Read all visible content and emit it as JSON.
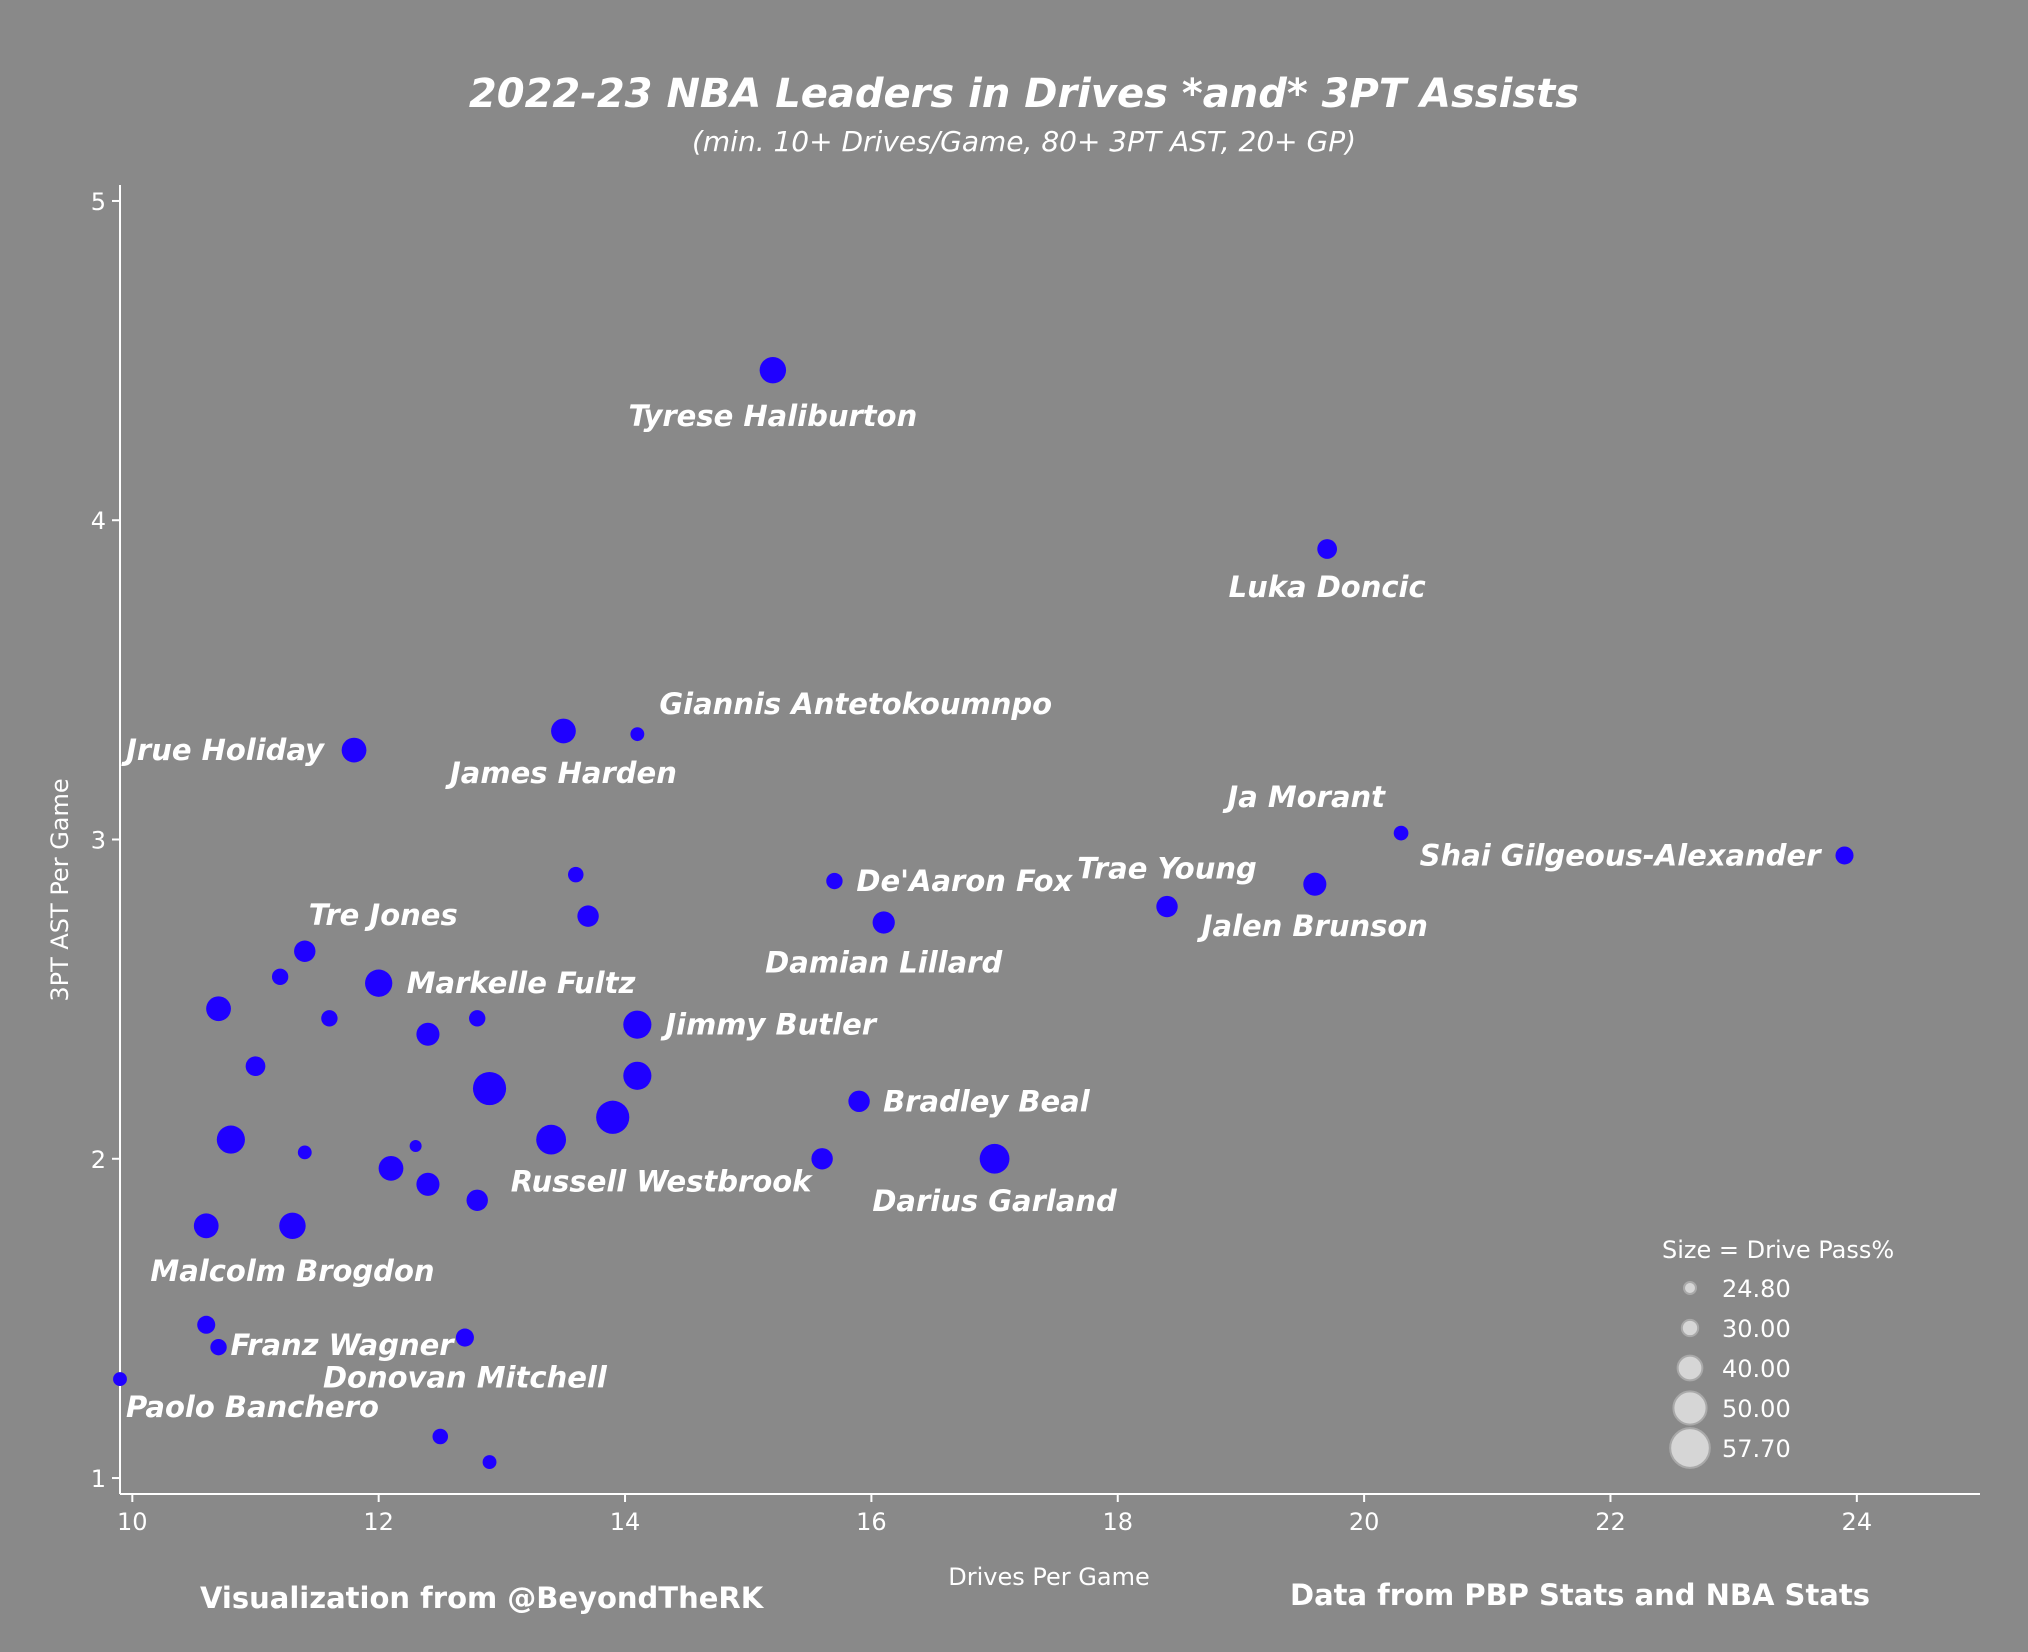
{
  "chart_data": {
    "type": "scatter",
    "title": "2022-23 NBA Leaders in Drives *and* 3PT Assists",
    "subtitle": "(min. 10+ Drives/Game, 80+ 3PT AST, 20+ GP)",
    "xlabel": "Drives Per Game",
    "ylabel": "3PT AST Per Game",
    "xlim": [
      9.9,
      25.0
    ],
    "ylim": [
      0.95,
      5.05
    ],
    "x_ticks": [
      "10",
      "12",
      "14",
      "16",
      "18",
      "20",
      "22",
      "24"
    ],
    "y_ticks": [
      "1",
      "2",
      "3",
      "4",
      "5"
    ],
    "colors": {
      "background": "#898989",
      "point": "#1f00ff",
      "legend_circle": "#d6d6d6"
    },
    "size_legend": {
      "title": "Size = Drive Pass%",
      "entries": [
        "24.80",
        "30.00",
        "40.00",
        "50.00",
        "57.70"
      ]
    },
    "labeled_points": [
      {
        "label": "Tyrese Haliburton",
        "x": 15.2,
        "y": 4.47,
        "size": 42
      },
      {
        "label": "Luka Doncic",
        "x": 19.7,
        "y": 3.91,
        "size": 34
      },
      {
        "label": "Giannis Antetokoumnpo",
        "x": 14.1,
        "y": 3.33,
        "size": 27
      },
      {
        "label": "James Harden",
        "x": 13.5,
        "y": 3.34,
        "size": 40
      },
      {
        "label": "Jrue Holiday",
        "x": 11.8,
        "y": 3.28,
        "size": 40
      },
      {
        "label": "Ja Morant",
        "x": 20.3,
        "y": 3.02,
        "size": 28
      },
      {
        "label": "Shai Gilgeous-Alexander",
        "x": 23.9,
        "y": 2.95,
        "size": 32
      },
      {
        "label": "Trae Young",
        "x": 18.4,
        "y": 2.79,
        "size": 36
      },
      {
        "label": "Jalen Brunson",
        "x": 19.6,
        "y": 2.86,
        "size": 38
      },
      {
        "label": "De'Aaron Fox",
        "x": 15.7,
        "y": 2.87,
        "size": 30
      },
      {
        "label": "Damian Lillard",
        "x": 16.1,
        "y": 2.74,
        "size": 37
      },
      {
        "label": "Tre Jones",
        "x": 11.4,
        "y": 2.65,
        "size": 36
      },
      {
        "label": "Markelle Fultz",
        "x": 12.0,
        "y": 2.55,
        "size": 43
      },
      {
        "label": "Jimmy Butler",
        "x": 14.1,
        "y": 2.42,
        "size": 44
      },
      {
        "label": "Bradley Beal",
        "x": 15.9,
        "y": 2.18,
        "size": 36
      },
      {
        "label": "Russell Westbrook",
        "x": 13.4,
        "y": 2.06,
        "size": 46
      },
      {
        "label": "Darius Garland",
        "x": 17.0,
        "y": 2.0,
        "size": 46
      },
      {
        "label": "Malcolm Brogdon",
        "x": 11.3,
        "y": 1.79,
        "size": 42
      },
      {
        "label": "Franz Wagner",
        "x": 10.7,
        "y": 1.41,
        "size": 30
      },
      {
        "label": "Donovan Mitchell",
        "x": 12.7,
        "y": 1.44,
        "size": 32
      },
      {
        "label": "Paolo Banchero",
        "x": 9.9,
        "y": 1.31,
        "size": 27
      }
    ],
    "other_points": [
      {
        "x": 13.6,
        "y": 2.89,
        "size": 29
      },
      {
        "x": 13.7,
        "y": 2.76,
        "size": 36
      },
      {
        "x": 11.2,
        "y": 2.57,
        "size": 30
      },
      {
        "x": 10.7,
        "y": 2.47,
        "size": 40
      },
      {
        "x": 11.6,
        "y": 2.44,
        "size": 30
      },
      {
        "x": 12.4,
        "y": 2.39,
        "size": 38
      },
      {
        "x": 12.8,
        "y": 2.44,
        "size": 30
      },
      {
        "x": 11.0,
        "y": 2.29,
        "size": 34
      },
      {
        "x": 14.1,
        "y": 2.26,
        "size": 44
      },
      {
        "x": 12.9,
        "y": 2.22,
        "size": 50
      },
      {
        "x": 13.9,
        "y": 2.13,
        "size": 50
      },
      {
        "x": 10.8,
        "y": 2.06,
        "size": 44
      },
      {
        "x": 11.4,
        "y": 2.02,
        "size": 27
      },
      {
        "x": 12.3,
        "y": 2.04,
        "size": 24.8
      },
      {
        "x": 12.1,
        "y": 1.97,
        "size": 40
      },
      {
        "x": 12.4,
        "y": 1.92,
        "size": 38
      },
      {
        "x": 12.8,
        "y": 1.87,
        "size": 36
      },
      {
        "x": 15.6,
        "y": 2.0,
        "size": 36
      },
      {
        "x": 10.6,
        "y": 1.79,
        "size": 40
      },
      {
        "x": 10.6,
        "y": 1.48,
        "size": 32
      },
      {
        "x": 12.5,
        "y": 1.13,
        "size": 29
      },
      {
        "x": 12.9,
        "y": 1.05,
        "size": 27
      }
    ]
  },
  "credits": {
    "left": "Visualization from @BeyondTheRK",
    "right": "Data from PBP Stats and NBA Stats"
  }
}
